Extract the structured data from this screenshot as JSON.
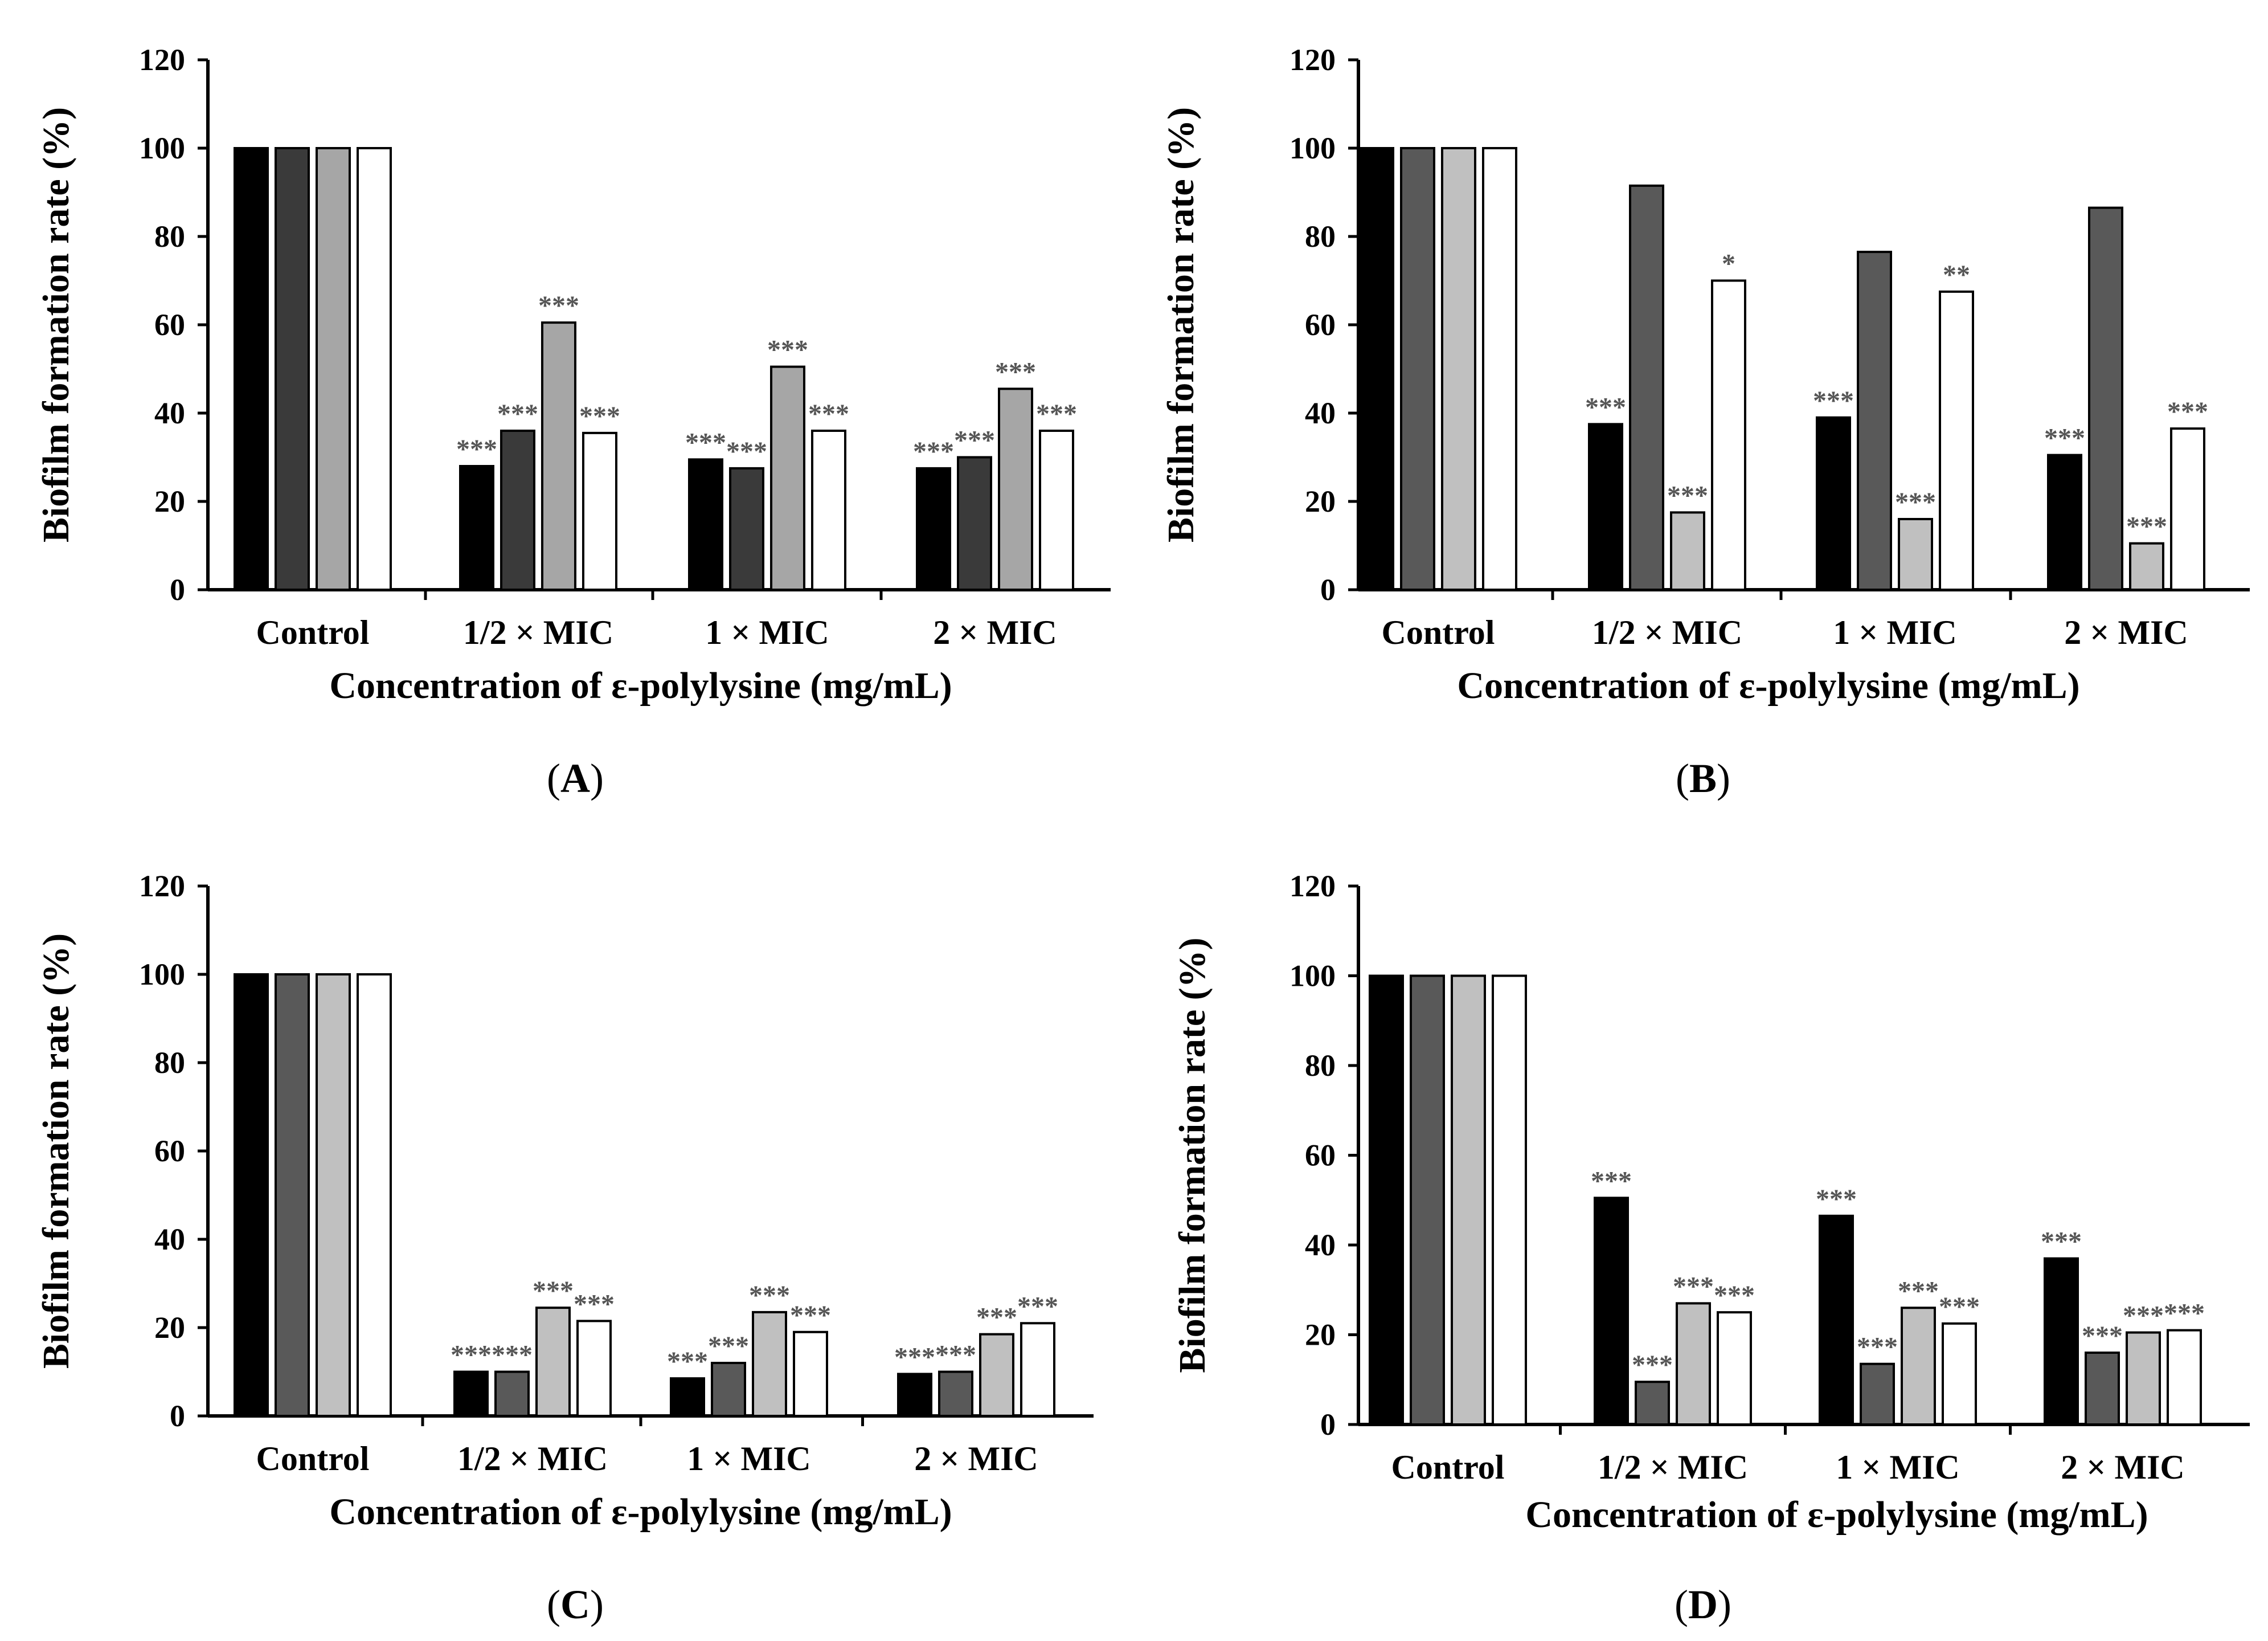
{
  "chart_data": [
    {
      "type": "bar",
      "panel_label": "A",
      "categories": [
        "Control",
        "1/2 × MIC",
        "1 × MIC",
        "2 × MIC"
      ],
      "xlabel": "Concentration of ε-polylysine (mg/mL)",
      "ylabel": "Biofilm formation rate (%)",
      "ylim": [
        0,
        120
      ],
      "yticks": [
        0,
        20,
        40,
        60,
        80,
        100,
        120
      ],
      "series": [
        {
          "color": "#000000",
          "values": [
            100,
            28,
            29.5,
            27.5
          ],
          "sig": [
            "",
            "***",
            "***",
            "***"
          ]
        },
        {
          "color": "#3a3a3a",
          "values": [
            100,
            36,
            27.5,
            30
          ],
          "sig": [
            "",
            "***",
            "***",
            "***"
          ]
        },
        {
          "color": "#a6a6a6",
          "values": [
            100,
            60.5,
            50.5,
            45.5
          ],
          "sig": [
            "",
            "***",
            "***",
            "***"
          ]
        },
        {
          "color": "#ffffff",
          "values": [
            100,
            35.5,
            36,
            36
          ],
          "sig": [
            "",
            "***",
            "***",
            "***"
          ]
        }
      ]
    },
    {
      "type": "bar",
      "panel_label": "B",
      "categories": [
        "Control",
        "1/2 × MIC",
        "1 × MIC",
        "2 × MIC"
      ],
      "xlabel": "Concentration of ε-polylysine (mg/mL)",
      "ylabel": "Biofilm formation rate (%)",
      "ylim": [
        0,
        120
      ],
      "yticks": [
        0,
        20,
        40,
        60,
        80,
        100,
        120
      ],
      "series": [
        {
          "color": "#000000",
          "values": [
            100,
            37.5,
            39,
            30.5
          ],
          "sig": [
            "",
            "***",
            "***",
            "***"
          ]
        },
        {
          "color": "#595959",
          "values": [
            100,
            91.5,
            76.5,
            86.5
          ],
          "sig": [
            "",
            "",
            "",
            ""
          ]
        },
        {
          "color": "#c0c0c0",
          "values": [
            100,
            17.5,
            16,
            10.5
          ],
          "sig": [
            "",
            "***",
            "***",
            "***"
          ]
        },
        {
          "color": "#ffffff",
          "values": [
            100,
            70,
            67.5,
            36.5
          ],
          "sig": [
            "",
            "*",
            "**",
            "***"
          ]
        }
      ]
    },
    {
      "type": "bar",
      "panel_label": "C",
      "categories": [
        "Control",
        "1/2 × MIC",
        "1 × MIC",
        "2 × MIC"
      ],
      "xlabel": "Concentration of ε-polylysine (mg/mL)",
      "ylabel": "Biofilm formation rate (%)",
      "ylim": [
        0,
        120
      ],
      "yticks": [
        0,
        20,
        40,
        60,
        80,
        100,
        120
      ],
      "series": [
        {
          "color": "#000000",
          "values": [
            100,
            10,
            8.5,
            9.5
          ],
          "sig": [
            "",
            "***",
            "***",
            "***"
          ]
        },
        {
          "color": "#595959",
          "values": [
            100,
            10,
            12,
            10
          ],
          "sig": [
            "",
            "***",
            "***",
            "***"
          ]
        },
        {
          "color": "#c0c0c0",
          "values": [
            100,
            24.5,
            23.5,
            18.5
          ],
          "sig": [
            "",
            "***",
            "***",
            "***"
          ]
        },
        {
          "color": "#ffffff",
          "values": [
            100,
            21.5,
            19,
            21
          ],
          "sig": [
            "",
            "***",
            "***",
            "***"
          ]
        }
      ]
    },
    {
      "type": "bar",
      "panel_label": "D",
      "categories": [
        "Control",
        "1/2 × MIC",
        "1 × MIC",
        "2 × MIC"
      ],
      "xlabel": "Concentration of ε-polylysine (mg/mL)",
      "ylabel": "Biofilm formation rate (%)",
      "ylim": [
        0,
        120
      ],
      "yticks": [
        0,
        20,
        40,
        60,
        80,
        100,
        120
      ],
      "series": [
        {
          "color": "#000000",
          "values": [
            100,
            50.5,
            46.5,
            37
          ],
          "sig": [
            "",
            "***",
            "***",
            "***"
          ]
        },
        {
          "color": "#595959",
          "values": [
            100,
            9.5,
            13.5,
            16
          ],
          "sig": [
            "",
            "***",
            "***",
            "***"
          ]
        },
        {
          "color": "#c0c0c0",
          "values": [
            100,
            27,
            26,
            20.5
          ],
          "sig": [
            "",
            "***",
            "***",
            "***"
          ]
        },
        {
          "color": "#ffffff",
          "values": [
            100,
            25,
            22.5,
            21
          ],
          "sig": [
            "",
            "***",
            "***",
            "***"
          ]
        }
      ]
    }
  ]
}
